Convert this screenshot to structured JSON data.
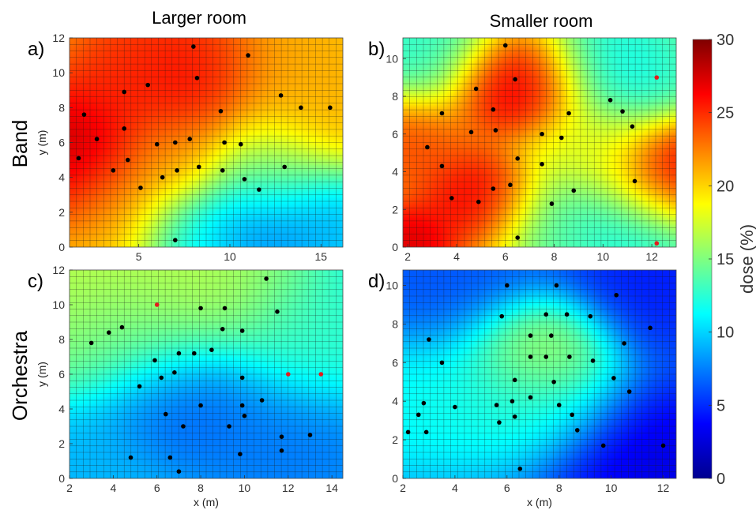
{
  "figure": {
    "col_titles": [
      "Larger room",
      "Smaller room"
    ],
    "row_titles": [
      "Band",
      "Orchestra"
    ]
  },
  "colorbar": {
    "label": "dose (%)",
    "range": [
      0,
      30
    ],
    "ticks": [
      "0",
      "5",
      "10",
      "15",
      "20",
      "25",
      "30"
    ]
  },
  "chart_data": [
    {
      "type": "heatmap",
      "panel": "a)",
      "title": "",
      "xlabel": "",
      "ylabel": "y (m)",
      "xlim": [
        1.2,
        16.2
      ],
      "ylim": [
        0,
        12
      ],
      "xticks": [
        5,
        10,
        15
      ],
      "yticks": [
        0,
        2,
        4,
        6,
        8,
        10,
        12
      ],
      "value_range": [
        0,
        30
      ],
      "hotspots": [
        {
          "x": 1.3,
          "y": 5.2,
          "v": 30,
          "s": 2.4
        },
        {
          "x": 8.0,
          "y": 9.8,
          "v": 28,
          "s": 2.0
        },
        {
          "x": 4.5,
          "y": 9.5,
          "v": 26,
          "s": 2.2
        },
        {
          "x": 6.5,
          "y": 11.5,
          "v": 25,
          "s": 2.5
        },
        {
          "x": 12.5,
          "y": 10.0,
          "v": 22,
          "s": 3.0
        },
        {
          "x": 16.0,
          "y": 9.0,
          "v": 21,
          "s": 2.5
        },
        {
          "x": 7.0,
          "y": 5.2,
          "v": 22,
          "s": 1.8
        },
        {
          "x": 3.5,
          "y": 2.0,
          "v": 21,
          "s": 2.2
        },
        {
          "x": 11.5,
          "y": 0.8,
          "v": 6,
          "s": 2.2
        },
        {
          "x": 15.5,
          "y": 1.0,
          "v": 8,
          "s": 2.2
        },
        {
          "x": 8.0,
          "y": 0.3,
          "v": 11,
          "s": 2.0
        },
        {
          "x": 12.0,
          "y": 4.5,
          "v": 15,
          "s": 2.0
        }
      ],
      "background": 18,
      "points_black": [
        [
          8.0,
          11.5
        ],
        [
          11.0,
          11.0
        ],
        [
          8.2,
          9.7
        ],
        [
          5.5,
          9.3
        ],
        [
          4.2,
          8.9
        ],
        [
          12.8,
          8.7
        ],
        [
          13.9,
          8.0
        ],
        [
          15.5,
          8.0
        ],
        [
          9.5,
          7.8
        ],
        [
          2.0,
          7.6
        ],
        [
          4.2,
          6.8
        ],
        [
          2.7,
          6.2
        ],
        [
          7.8,
          6.2
        ],
        [
          6.0,
          5.9
        ],
        [
          7.0,
          6.0
        ],
        [
          9.7,
          6.0
        ],
        [
          10.6,
          5.9
        ],
        [
          1.7,
          5.1
        ],
        [
          4.4,
          5.0
        ],
        [
          3.6,
          4.4
        ],
        [
          8.3,
          4.6
        ],
        [
          7.1,
          4.4
        ],
        [
          9.6,
          4.4
        ],
        [
          13.0,
          4.6
        ],
        [
          6.3,
          4.0
        ],
        [
          10.8,
          3.9
        ],
        [
          5.1,
          3.4
        ],
        [
          11.6,
          3.3
        ],
        [
          7.0,
          0.4
        ]
      ],
      "points_red": []
    },
    {
      "type": "heatmap",
      "panel": "b)",
      "title": "",
      "xlabel": "",
      "ylabel": "",
      "xlim": [
        1.8,
        13.0
      ],
      "ylim": [
        0,
        11.1
      ],
      "xticks": [
        2,
        4,
        6,
        8,
        10,
        12
      ],
      "yticks": [
        0,
        2,
        4,
        6,
        8,
        10
      ],
      "value_range": [
        0,
        30
      ],
      "hotspots": [
        {
          "x": 6.5,
          "y": 8.6,
          "v": 29,
          "s": 1.6
        },
        {
          "x": 5.0,
          "y": 2.6,
          "v": 28,
          "s": 1.5
        },
        {
          "x": 13.0,
          "y": 3.6,
          "v": 29,
          "s": 1.6
        },
        {
          "x": 1.8,
          "y": 5.5,
          "v": 25,
          "s": 1.6
        },
        {
          "x": 1.9,
          "y": 0.2,
          "v": 29,
          "s": 1.2
        },
        {
          "x": 9.5,
          "y": 5.0,
          "v": 18,
          "s": 1.6
        },
        {
          "x": 2.5,
          "y": 10.5,
          "v": 12,
          "s": 1.8
        },
        {
          "x": 10.5,
          "y": 9.5,
          "v": 11,
          "s": 1.8
        },
        {
          "x": 11.5,
          "y": 1.0,
          "v": 11,
          "s": 1.8
        },
        {
          "x": 8.0,
          "y": 1.5,
          "v": 13,
          "s": 1.5
        }
      ],
      "background": 17,
      "points_black": [
        [
          6.0,
          10.7
        ],
        [
          6.4,
          8.9
        ],
        [
          4.8,
          8.4
        ],
        [
          5.5,
          7.3
        ],
        [
          3.4,
          7.1
        ],
        [
          8.6,
          7.1
        ],
        [
          10.3,
          7.8
        ],
        [
          10.8,
          7.2
        ],
        [
          11.2,
          6.4
        ],
        [
          2.8,
          5.3
        ],
        [
          4.6,
          6.1
        ],
        [
          5.6,
          6.2
        ],
        [
          7.5,
          6.0
        ],
        [
          8.3,
          5.8
        ],
        [
          6.5,
          4.7
        ],
        [
          3.4,
          4.3
        ],
        [
          7.5,
          4.4
        ],
        [
          6.2,
          3.3
        ],
        [
          5.5,
          3.1
        ],
        [
          8.8,
          3.0
        ],
        [
          11.3,
          3.5
        ],
        [
          3.8,
          2.6
        ],
        [
          4.9,
          2.4
        ],
        [
          7.9,
          2.3
        ],
        [
          6.5,
          0.5
        ]
      ],
      "points_red": [
        [
          12.2,
          9.0
        ],
        [
          12.2,
          0.2
        ]
      ]
    },
    {
      "type": "heatmap",
      "panel": "c)",
      "title": "",
      "xlabel": "x (m)",
      "ylabel": "y (m)",
      "xlim": [
        2,
        14.5
      ],
      "ylim": [
        0,
        12
      ],
      "xticks": [
        2,
        4,
        6,
        8,
        10,
        12,
        14
      ],
      "yticks": [
        0,
        2,
        4,
        6,
        8,
        10,
        12
      ],
      "value_range": [
        0,
        30
      ],
      "hotspots": [
        {
          "x": 3.0,
          "y": 11.5,
          "v": 18,
          "s": 3.5
        },
        {
          "x": 8.0,
          "y": 12.0,
          "v": 17,
          "s": 3.0
        },
        {
          "x": 4.5,
          "y": 8.5,
          "v": 14,
          "s": 2.2
        },
        {
          "x": 7.0,
          "y": 4.5,
          "v": 6,
          "s": 2.2
        },
        {
          "x": 12.0,
          "y": 1.5,
          "v": 7,
          "s": 2.5
        },
        {
          "x": 13.5,
          "y": 8.0,
          "v": 13,
          "s": 2.2
        },
        {
          "x": 2.5,
          "y": 0.5,
          "v": 9,
          "s": 2.0
        }
      ],
      "background": 10,
      "points_black": [
        [
          11.0,
          11.5
        ],
        [
          8.0,
          9.8
        ],
        [
          9.1,
          9.8
        ],
        [
          11.5,
          9.6
        ],
        [
          4.4,
          8.7
        ],
        [
          3.8,
          8.4
        ],
        [
          9.0,
          8.6
        ],
        [
          9.9,
          8.5
        ],
        [
          3.0,
          7.8
        ],
        [
          7.7,
          7.2
        ],
        [
          7.0,
          7.2
        ],
        [
          8.5,
          7.4
        ],
        [
          6.8,
          6.1
        ],
        [
          5.9,
          6.8
        ],
        [
          6.2,
          5.8
        ],
        [
          9.9,
          5.8
        ],
        [
          5.2,
          5.3
        ],
        [
          8.0,
          4.2
        ],
        [
          10.8,
          4.5
        ],
        [
          9.9,
          4.2
        ],
        [
          10.0,
          3.6
        ],
        [
          6.4,
          3.7
        ],
        [
          7.2,
          3.0
        ],
        [
          9.3,
          3.0
        ],
        [
          11.7,
          2.4
        ],
        [
          13.0,
          2.5
        ],
        [
          11.7,
          1.6
        ],
        [
          9.8,
          1.4
        ],
        [
          4.8,
          1.2
        ],
        [
          6.6,
          1.2
        ],
        [
          7.0,
          0.4
        ]
      ],
      "points_red": [
        [
          6.0,
          10.0
        ],
        [
          12.0,
          6.0
        ],
        [
          13.5,
          6.0
        ]
      ]
    },
    {
      "type": "heatmap",
      "panel": "d)",
      "title": "",
      "xlabel": "x (m)",
      "ylabel": "",
      "xlim": [
        2,
        12.5
      ],
      "ylim": [
        0,
        10.8
      ],
      "xticks": [
        2,
        4,
        6,
        8,
        10,
        12
      ],
      "yticks": [
        0,
        2,
        4,
        6,
        8,
        10
      ],
      "value_range": [
        0,
        30
      ],
      "hotspots": [
        {
          "x": 7.2,
          "y": 6.8,
          "v": 18,
          "s": 1.5
        },
        {
          "x": 6.5,
          "y": 4.5,
          "v": 13,
          "s": 2.0
        },
        {
          "x": 2.5,
          "y": 4.0,
          "v": 12,
          "s": 2.0
        },
        {
          "x": 12.5,
          "y": 0.2,
          "v": 2,
          "s": 2.5
        },
        {
          "x": 12.0,
          "y": 10.5,
          "v": 4,
          "s": 2.2
        },
        {
          "x": 3.5,
          "y": 10.5,
          "v": 6,
          "s": 2.2
        }
      ],
      "background": 8,
      "points_black": [
        [
          6.0,
          10.0
        ],
        [
          7.9,
          10.0
        ],
        [
          10.2,
          9.5
        ],
        [
          5.8,
          8.4
        ],
        [
          7.5,
          8.5
        ],
        [
          8.3,
          8.5
        ],
        [
          9.2,
          8.4
        ],
        [
          11.5,
          7.8
        ],
        [
          6.9,
          7.4
        ],
        [
          7.7,
          7.4
        ],
        [
          3.0,
          7.2
        ],
        [
          10.5,
          7.0
        ],
        [
          6.9,
          6.3
        ],
        [
          7.5,
          6.3
        ],
        [
          8.4,
          6.3
        ],
        [
          3.5,
          6.0
        ],
        [
          9.3,
          6.1
        ],
        [
          6.3,
          5.1
        ],
        [
          7.8,
          5.0
        ],
        [
          10.1,
          5.2
        ],
        [
          10.7,
          4.5
        ],
        [
          6.9,
          4.2
        ],
        [
          6.2,
          4.0
        ],
        [
          2.8,
          3.9
        ],
        [
          4.0,
          3.7
        ],
        [
          5.6,
          3.8
        ],
        [
          8.0,
          3.8
        ],
        [
          2.6,
          3.3
        ],
        [
          6.3,
          3.2
        ],
        [
          8.5,
          3.3
        ],
        [
          5.7,
          2.9
        ],
        [
          2.2,
          2.4
        ],
        [
          2.9,
          2.4
        ],
        [
          8.7,
          2.5
        ],
        [
          9.7,
          1.7
        ],
        [
          12.0,
          1.7
        ],
        [
          6.5,
          0.5
        ]
      ],
      "points_red": []
    }
  ]
}
